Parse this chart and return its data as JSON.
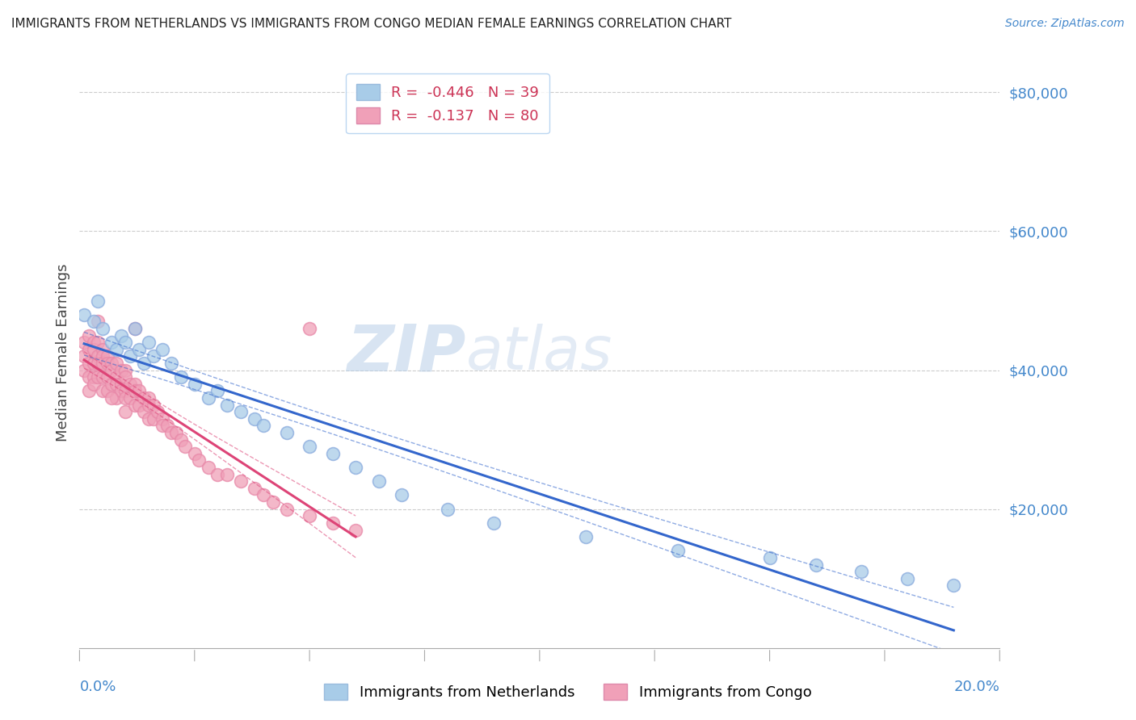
{
  "title": "IMMIGRANTS FROM NETHERLANDS VS IMMIGRANTS FROM CONGO MEDIAN FEMALE EARNINGS CORRELATION CHART",
  "source": "Source: ZipAtlas.com",
  "ylabel": "Median Female Earnings",
  "x_min": 0.0,
  "x_max": 0.2,
  "y_min": 0,
  "y_max": 85000,
  "watermark_zip": "ZIP",
  "watermark_atlas": "atlas",
  "netherlands_color": "#a8cce8",
  "congo_color": "#f0a0b8",
  "netherlands_line_color": "#3366cc",
  "congo_line_color": "#dd4477",
  "netherlands_R": -0.446,
  "netherlands_N": 39,
  "congo_R": -0.137,
  "congo_N": 80,
  "netherlands_x": [
    0.001,
    0.003,
    0.004,
    0.005,
    0.007,
    0.008,
    0.009,
    0.01,
    0.011,
    0.012,
    0.013,
    0.014,
    0.015,
    0.016,
    0.018,
    0.02,
    0.022,
    0.025,
    0.028,
    0.03,
    0.032,
    0.035,
    0.038,
    0.04,
    0.045,
    0.05,
    0.055,
    0.06,
    0.065,
    0.07,
    0.08,
    0.09,
    0.11,
    0.13,
    0.15,
    0.16,
    0.17,
    0.18,
    0.19
  ],
  "netherlands_y": [
    48000,
    47000,
    50000,
    46000,
    44000,
    43000,
    45000,
    44000,
    42000,
    46000,
    43000,
    41000,
    44000,
    42000,
    43000,
    41000,
    39000,
    38000,
    36000,
    37000,
    35000,
    34000,
    33000,
    32000,
    31000,
    29000,
    28000,
    26000,
    24000,
    22000,
    20000,
    18000,
    16000,
    14000,
    13000,
    12000,
    11000,
    10000,
    9000
  ],
  "congo_x": [
    0.001,
    0.001,
    0.001,
    0.002,
    0.002,
    0.002,
    0.002,
    0.002,
    0.003,
    0.003,
    0.003,
    0.003,
    0.003,
    0.004,
    0.004,
    0.004,
    0.004,
    0.005,
    0.005,
    0.005,
    0.005,
    0.005,
    0.006,
    0.006,
    0.006,
    0.006,
    0.007,
    0.007,
    0.007,
    0.008,
    0.008,
    0.008,
    0.008,
    0.009,
    0.009,
    0.009,
    0.01,
    0.01,
    0.01,
    0.01,
    0.01,
    0.011,
    0.011,
    0.012,
    0.012,
    0.012,
    0.013,
    0.013,
    0.014,
    0.014,
    0.015,
    0.015,
    0.015,
    0.016,
    0.016,
    0.017,
    0.018,
    0.018,
    0.019,
    0.02,
    0.021,
    0.022,
    0.023,
    0.025,
    0.026,
    0.028,
    0.03,
    0.032,
    0.035,
    0.038,
    0.04,
    0.042,
    0.045,
    0.05,
    0.055,
    0.06,
    0.004,
    0.007,
    0.012,
    0.05
  ],
  "congo_y": [
    44000,
    42000,
    40000,
    45000,
    43000,
    41000,
    39000,
    37000,
    44000,
    43000,
    41000,
    39000,
    38000,
    44000,
    42000,
    41000,
    39000,
    43000,
    42000,
    41000,
    39000,
    37000,
    42000,
    41000,
    39000,
    37000,
    41000,
    40000,
    38000,
    41000,
    39000,
    38000,
    36000,
    40000,
    38000,
    37000,
    40000,
    39000,
    37000,
    36000,
    34000,
    38000,
    36000,
    38000,
    37000,
    35000,
    37000,
    35000,
    36000,
    34000,
    36000,
    35000,
    33000,
    35000,
    33000,
    34000,
    33000,
    32000,
    32000,
    31000,
    31000,
    30000,
    29000,
    28000,
    27000,
    26000,
    25000,
    25000,
    24000,
    23000,
    22000,
    21000,
    20000,
    19000,
    18000,
    17000,
    47000,
    36000,
    46000,
    46000
  ],
  "yticks": [
    0,
    20000,
    40000,
    60000,
    80000
  ],
  "ytick_labels": [
    "",
    "$20,000",
    "$40,000",
    "$60,000",
    "$80,000"
  ],
  "background_color": "#ffffff",
  "grid_color": "#cccccc",
  "legend_label_nl": "R =  -0.446   N = 39",
  "legend_label_co": "R =  -0.137   N = 80",
  "bottom_legend_nl": "Immigrants from Netherlands",
  "bottom_legend_co": "Immigrants from Congo"
}
